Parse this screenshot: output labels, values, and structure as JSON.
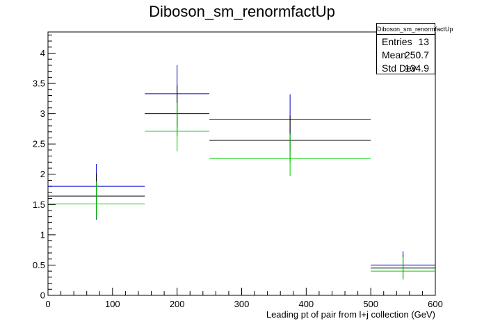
{
  "chart_data": {
    "type": "error_bar_histogram",
    "title": "Diboson_sm_renormfactUp",
    "xlabel": "Leading pt of pair from l+j collection (GeV)",
    "ylabel": "",
    "xlim": [
      0,
      600
    ],
    "ylim": [
      0,
      4.35
    ],
    "x_ticks": [
      "0",
      "100",
      "200",
      "300",
      "400",
      "500",
      "600"
    ],
    "y_ticks": [
      "0",
      "0.5",
      "1",
      "1.5",
      "2",
      "2.5",
      "3",
      "3.5",
      "4"
    ],
    "bins": [
      {
        "low": 0,
        "high": 150,
        "center": 75
      },
      {
        "low": 150,
        "high": 250,
        "center": 200
      },
      {
        "low": 250,
        "high": 500,
        "center": 375
      },
      {
        "low": 500,
        "high": 600,
        "center": 550
      }
    ],
    "series": [
      {
        "color": "#0000cc",
        "values": [
          1.8,
          3.33,
          2.91,
          0.5
        ],
        "err_low": [
          0.55,
          0.55,
          0.52,
          0.22
        ],
        "err_high": [
          0.37,
          0.47,
          0.41,
          0.23
        ]
      },
      {
        "color": "#000000",
        "values": [
          1.64,
          3.0,
          2.56,
          0.45
        ],
        "err_low": [
          0.37,
          0.37,
          0.36,
          0.18
        ],
        "err_high": [
          0.37,
          0.47,
          0.41,
          0.23
        ]
      },
      {
        "color": "#00cc00",
        "values": [
          1.51,
          2.71,
          2.26,
          0.4
        ],
        "err_low": [
          0.24,
          0.33,
          0.29,
          0.14
        ],
        "err_high": [
          0.37,
          0.47,
          0.41,
          0.23
        ]
      }
    ],
    "grid": false,
    "legend": "none"
  },
  "stats": {
    "title": "Diboson_sm_renormfactUp",
    "entries_label": "Entries",
    "entries": "13",
    "mean_label": "Mean",
    "mean": "250.7",
    "std_label": "Std Dev",
    "std": "134.9"
  }
}
